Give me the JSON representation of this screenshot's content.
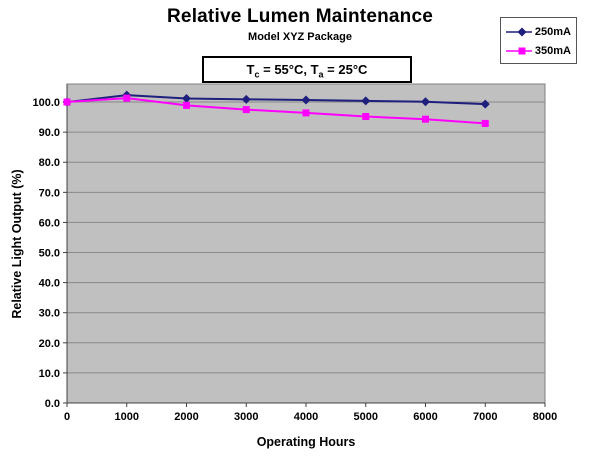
{
  "chart_data": {
    "type": "line",
    "title": "Relative Lumen Maintenance",
    "subtitle": "Model XYZ Package",
    "annotation": {
      "prefix": "T",
      "sub1": "c",
      "middle": " = 55°C, T",
      "sub2": "a",
      "suffix": " = 25°C"
    },
    "xlabel": "Operating Hours",
    "ylabel": "Relative Light Output (%)",
    "x": [
      0,
      1000,
      2000,
      3000,
      4000,
      5000,
      6000,
      7000
    ],
    "xticks": [
      "0",
      "1000",
      "2000",
      "3000",
      "4000",
      "5000",
      "6000",
      "7000",
      "8000"
    ],
    "yticks": [
      "0.0",
      "10.0",
      "20.0",
      "30.0",
      "40.0",
      "50.0",
      "60.0",
      "70.0",
      "80.0",
      "90.0",
      "100.0"
    ],
    "xlim": [
      0,
      8000
    ],
    "ylim": [
      0,
      106
    ],
    "grid": true,
    "legend_position": "top-right",
    "series": [
      {
        "name": "250mA",
        "color": "#1F1F7E",
        "marker": "diamond",
        "values": [
          100.0,
          102.3,
          101.2,
          100.9,
          100.7,
          100.4,
          100.1,
          99.3
        ]
      },
      {
        "name": "350mA",
        "color": "#FF00FF",
        "marker": "square",
        "values": [
          100.0,
          101.3,
          98.9,
          97.5,
          96.4,
          95.2,
          94.3,
          92.9
        ]
      }
    ],
    "plot_bg": "#C0C0C0",
    "grid_color": "#888888",
    "axis_color": "#404040",
    "border_color": "#808080"
  }
}
